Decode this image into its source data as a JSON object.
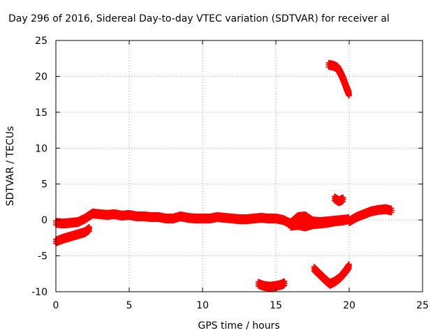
{
  "chart_data": {
    "type": "scatter",
    "title": "Day 296 of 2016, Sidereal Day-to-day VTEC variation (SDTVAR) for receiver al",
    "xlabel": "GPS time / hours",
    "ylabel": "SDTVAR / TECUs",
    "xlim": [
      0,
      25
    ],
    "ylim": [
      -10,
      25
    ],
    "xticks": [
      0,
      5,
      10,
      15,
      20,
      25
    ],
    "yticks": [
      -10,
      -5,
      0,
      5,
      10,
      15,
      20,
      25
    ],
    "grid": true,
    "marker": "plus",
    "color": "#ff0000",
    "series": [
      {
        "x": [
          0.0,
          0.5,
          1.0,
          1.5,
          2.0,
          2.5,
          3.0,
          3.5,
          4.0,
          4.5,
          5.0,
          5.5,
          6.0,
          6.5,
          7.0,
          7.5,
          8.0,
          8.5,
          9.0,
          9.5,
          10.0,
          10.5,
          11.0,
          11.5,
          12.0,
          12.5,
          13.0,
          13.5,
          14.0,
          14.5,
          15.0,
          15.5,
          16.0,
          16.5,
          17.0,
          17.5,
          18.0,
          18.5,
          19.0,
          19.5,
          20.0
        ],
        "y": [
          -0.4,
          -0.5,
          -0.4,
          -0.3,
          0.2,
          0.9,
          0.8,
          0.7,
          0.8,
          0.6,
          0.7,
          0.5,
          0.5,
          0.4,
          0.4,
          0.2,
          0.2,
          0.5,
          0.3,
          0.2,
          0.2,
          0.2,
          0.4,
          0.3,
          0.2,
          0.1,
          0.1,
          0.2,
          0.3,
          0.2,
          0.2,
          0.0,
          -0.5,
          0.4,
          0.5,
          -0.2,
          -0.3,
          -0.2,
          -0.1,
          0.0,
          0.1
        ]
      },
      {
        "x": [
          0.0,
          0.5,
          1.0,
          1.5,
          2.0,
          2.3
        ],
        "y": [
          -3.0,
          -2.6,
          -2.3,
          -2.0,
          -1.7,
          -1.2
        ]
      },
      {
        "x": [
          16.0,
          16.5,
          17.0,
          17.5,
          18.0,
          18.5,
          19.0,
          19.5,
          20.0
        ],
        "y": [
          -0.8,
          -0.7,
          -0.9,
          -0.6,
          -0.5,
          -0.4,
          -0.2,
          -0.1,
          0.1
        ]
      },
      {
        "x": [
          20.0,
          20.5,
          21.0,
          21.5,
          22.0,
          22.5,
          22.9
        ],
        "y": [
          -0.2,
          0.4,
          0.8,
          1.2,
          1.4,
          1.5,
          1.3
        ]
      },
      {
        "x": [
          18.6,
          18.9,
          19.2,
          19.4,
          19.6,
          19.8,
          20.0
        ],
        "y": [
          21.6,
          21.5,
          21.2,
          20.5,
          19.6,
          18.5,
          17.5
        ]
      },
      {
        "x": [
          19.0,
          19.3,
          19.6
        ],
        "y": [
          3.0,
          2.6,
          2.9
        ]
      },
      {
        "x": [
          13.8,
          14.2,
          14.6,
          15.0,
          15.4,
          15.6
        ],
        "y": [
          -8.9,
          -9.2,
          -9.3,
          -9.2,
          -9.0,
          -8.8
        ]
      },
      {
        "x": [
          17.6,
          18.0,
          18.4,
          18.7,
          19.0,
          19.4,
          19.8,
          20.0
        ],
        "y": [
          -6.8,
          -7.6,
          -8.4,
          -8.9,
          -8.6,
          -8.0,
          -7.0,
          -6.4
        ]
      }
    ]
  }
}
